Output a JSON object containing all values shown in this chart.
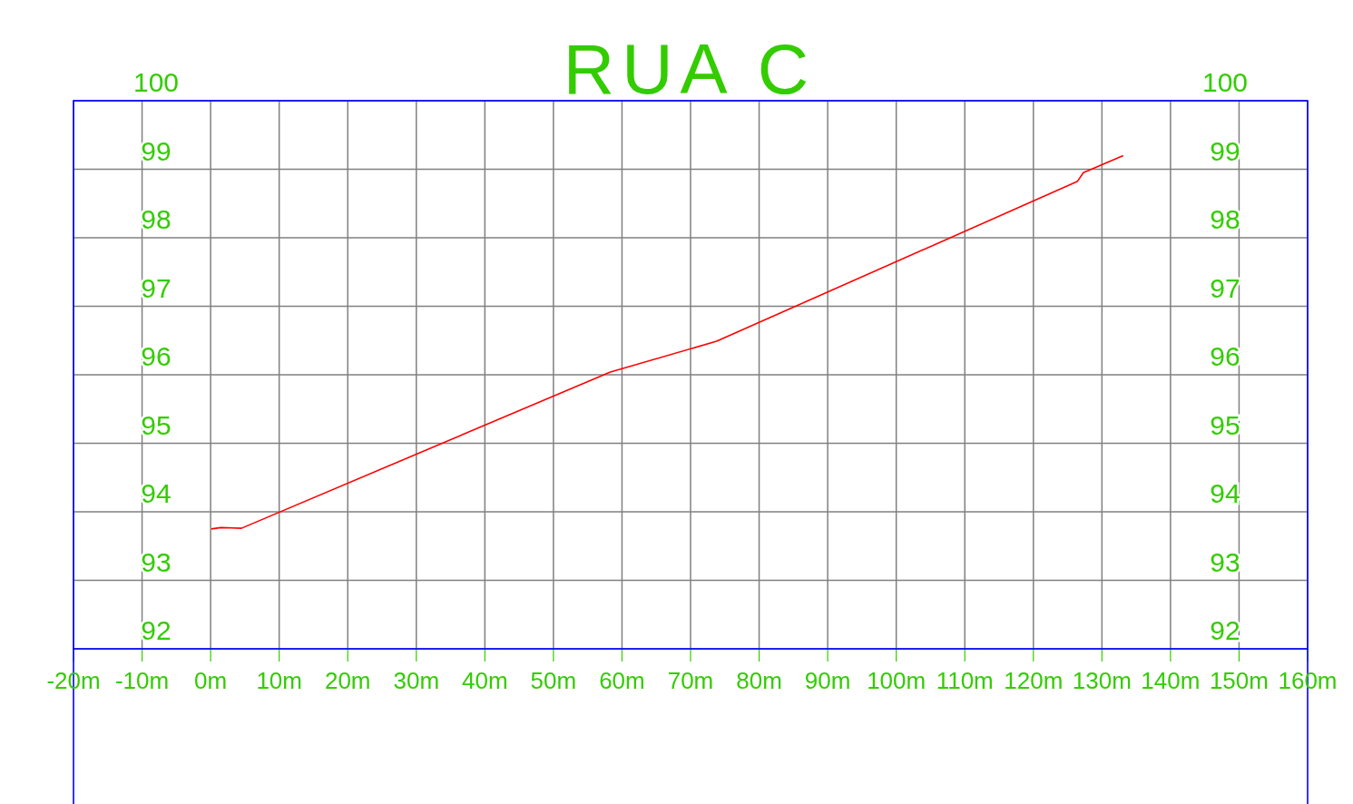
{
  "chart_data": {
    "type": "line",
    "title": "RUA  C",
    "series": [
      {
        "color": "#ff0000",
        "x": [
          0.1,
          1.5,
          4.5,
          58.3,
          73.8,
          126.4,
          127.3,
          133.1
        ],
        "values": [
          93.75,
          93.77,
          93.76,
          96.04,
          96.49,
          98.82,
          98.95,
          99.2
        ]
      }
    ],
    "xlim": [
      -20,
      160
    ],
    "xticks": [
      {
        "value": -20,
        "label": "-20m"
      },
      {
        "value": -10,
        "label": "-10m"
      },
      {
        "value": 0,
        "label": "0m"
      },
      {
        "value": 10,
        "label": "10m"
      },
      {
        "value": 20,
        "label": "20m"
      },
      {
        "value": 30,
        "label": "30m"
      },
      {
        "value": 40,
        "label": "40m"
      },
      {
        "value": 50,
        "label": "50m"
      },
      {
        "value": 60,
        "label": "60m"
      },
      {
        "value": 70,
        "label": "70m"
      },
      {
        "value": 80,
        "label": "80m"
      },
      {
        "value": 90,
        "label": "90m"
      },
      {
        "value": 100,
        "label": "100m"
      },
      {
        "value": 110,
        "label": "110m"
      },
      {
        "value": 120,
        "label": "120m"
      },
      {
        "value": 130,
        "label": "130m"
      },
      {
        "value": 140,
        "label": "140m"
      },
      {
        "value": 150,
        "label": "150m"
      },
      {
        "value": 160,
        "label": "160m"
      }
    ],
    "ylim": [
      92,
      100
    ],
    "yticks": [
      92,
      93,
      94,
      95,
      96,
      97,
      98,
      99,
      100
    ],
    "y2lim": [
      92,
      100
    ],
    "y2ticks": [
      92,
      93,
      94,
      95,
      96,
      97,
      98,
      99,
      100
    ],
    "grid": true,
    "marker": "none",
    "line_style": "solid"
  }
}
